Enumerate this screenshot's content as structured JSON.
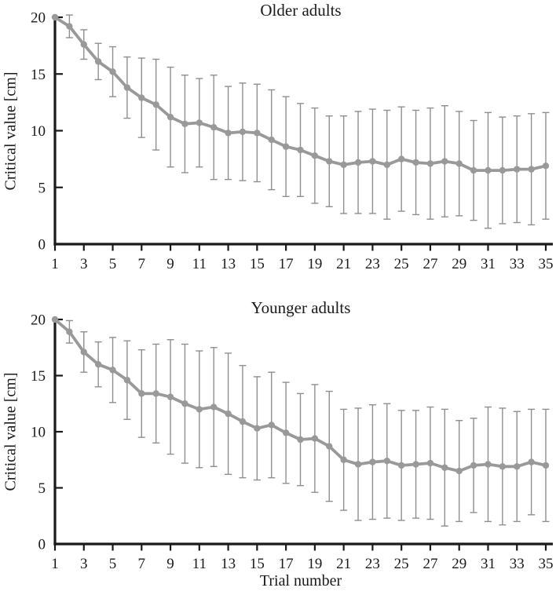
{
  "colors": {
    "series_gray": "#999999",
    "error_gray": "#8f8f8f",
    "axis_black": "#1a1a1a",
    "text": "#1a1a1a"
  },
  "chart_data": [
    {
      "type": "line",
      "title": "Older adults",
      "ylabel": "Critical value [cm]",
      "xlabel": "",
      "x_range": [
        1,
        35
      ],
      "xtick_labels": [
        "1",
        "3",
        "5",
        "7",
        "9",
        "11",
        "13",
        "15",
        "17",
        "19",
        "21",
        "23",
        "25",
        "27",
        "29",
        "31",
        "33",
        "35"
      ],
      "ytick_labels": [
        "0",
        "5",
        "10",
        "15",
        "20"
      ],
      "yticks": [
        0,
        5,
        10,
        15,
        20
      ],
      "ylim": [
        0,
        20
      ],
      "grid": false,
      "legend": "none",
      "marker": "circle",
      "error_bars": true,
      "series": [
        {
          "name": "Older adults mean critical value",
          "x": [
            1,
            2,
            3,
            4,
            5,
            6,
            7,
            8,
            9,
            10,
            11,
            12,
            13,
            14,
            15,
            16,
            17,
            18,
            19,
            20,
            21,
            22,
            23,
            24,
            25,
            26,
            27,
            28,
            29,
            30,
            31,
            32,
            33,
            34,
            35
          ],
          "values": [
            20.0,
            19.2,
            17.6,
            16.1,
            15.2,
            13.8,
            12.9,
            12.3,
            11.2,
            10.6,
            10.7,
            10.3,
            9.8,
            9.9,
            9.8,
            9.2,
            8.6,
            8.3,
            7.8,
            7.3,
            7.0,
            7.2,
            7.3,
            7.0,
            7.5,
            7.2,
            7.1,
            7.3,
            7.1,
            6.5,
            6.5,
            6.5,
            6.6,
            6.6,
            6.9
          ],
          "errors": [
            0,
            1.0,
            1.3,
            1.6,
            2.2,
            2.7,
            3.5,
            4.0,
            4.4,
            4.3,
            3.9,
            4.6,
            4.1,
            4.3,
            4.3,
            4.4,
            4.4,
            4.1,
            4.2,
            4.0,
            4.3,
            4.5,
            4.6,
            4.8,
            4.6,
            4.6,
            4.9,
            4.9,
            4.6,
            4.4,
            5.1,
            4.7,
            4.7,
            4.9,
            4.7
          ]
        }
      ]
    },
    {
      "type": "line",
      "title": "Younger adults",
      "ylabel": "Critical value [cm]",
      "xlabel": "Trial number",
      "x_range": [
        1,
        35
      ],
      "xtick_labels": [
        "1",
        "3",
        "5",
        "7",
        "9",
        "11",
        "13",
        "15",
        "17",
        "19",
        "21",
        "23",
        "25",
        "27",
        "29",
        "31",
        "33",
        "35"
      ],
      "ytick_labels": [
        "0",
        "5",
        "10",
        "15",
        "20"
      ],
      "yticks": [
        0,
        5,
        10,
        15,
        20
      ],
      "ylim": [
        0,
        20
      ],
      "grid": false,
      "legend": "none",
      "marker": "circle",
      "error_bars": true,
      "series": [
        {
          "name": "Younger adults mean critical value",
          "x": [
            1,
            2,
            3,
            4,
            5,
            6,
            7,
            8,
            9,
            10,
            11,
            12,
            13,
            14,
            15,
            16,
            17,
            18,
            19,
            20,
            21,
            22,
            23,
            24,
            25,
            26,
            27,
            28,
            29,
            30,
            31,
            32,
            33,
            34,
            35
          ],
          "values": [
            20.0,
            18.9,
            17.1,
            16.0,
            15.5,
            14.6,
            13.4,
            13.4,
            13.1,
            12.5,
            12.0,
            12.2,
            11.6,
            10.9,
            10.3,
            10.6,
            9.9,
            9.3,
            9.4,
            8.7,
            7.5,
            7.1,
            7.3,
            7.4,
            7.0,
            7.1,
            7.2,
            6.8,
            6.5,
            7.0,
            7.1,
            6.9,
            6.9,
            7.3,
            7.0
          ],
          "errors": [
            0,
            1.0,
            1.8,
            2.0,
            2.9,
            3.5,
            3.9,
            4.4,
            5.1,
            5.3,
            5.2,
            5.3,
            5.4,
            5.0,
            4.6,
            4.7,
            4.5,
            4.1,
            4.8,
            4.9,
            4.5,
            5.0,
            5.1,
            5.1,
            4.9,
            4.8,
            5.0,
            5.2,
            4.5,
            4.2,
            5.1,
            5.2,
            4.9,
            4.7,
            5.0
          ]
        }
      ]
    }
  ]
}
